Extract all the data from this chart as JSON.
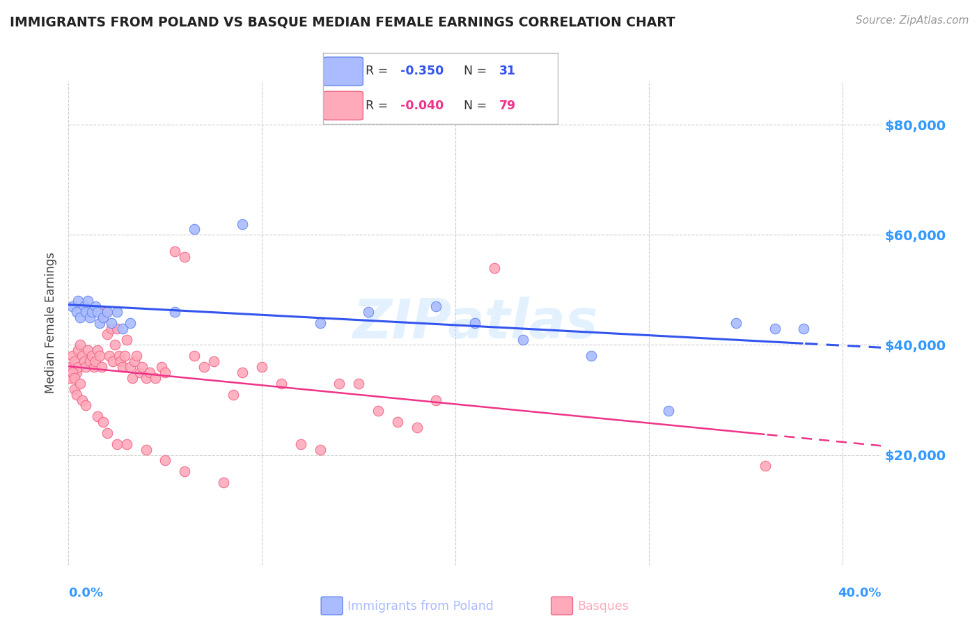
{
  "title": "IMMIGRANTS FROM POLAND VS BASQUE MEDIAN FEMALE EARNINGS CORRELATION CHART",
  "source": "Source: ZipAtlas.com",
  "ylabel": "Median Female Earnings",
  "ytick_labels": [
    "$20,000",
    "$40,000",
    "$60,000",
    "$80,000"
  ],
  "ytick_values": [
    20000,
    40000,
    60000,
    80000
  ],
  "ylim": [
    0,
    88000
  ],
  "xlim": [
    0.0,
    0.42
  ],
  "blue_scatter_x": [
    0.002,
    0.004,
    0.005,
    0.006,
    0.008,
    0.009,
    0.01,
    0.011,
    0.012,
    0.014,
    0.015,
    0.016,
    0.018,
    0.02,
    0.022,
    0.025,
    0.028,
    0.032,
    0.055,
    0.065,
    0.09,
    0.13,
    0.155,
    0.19,
    0.21,
    0.235,
    0.27,
    0.31,
    0.345,
    0.365,
    0.38
  ],
  "blue_scatter_y": [
    47000,
    46000,
    48000,
    45000,
    47000,
    46000,
    48000,
    45000,
    46000,
    47000,
    46000,
    44000,
    45000,
    46000,
    44000,
    46000,
    43000,
    44000,
    46000,
    61000,
    62000,
    44000,
    46000,
    47000,
    44000,
    41000,
    38000,
    28000,
    44000,
    43000,
    43000
  ],
  "pink_scatter_x": [
    0.001,
    0.002,
    0.003,
    0.004,
    0.005,
    0.005,
    0.006,
    0.007,
    0.008,
    0.009,
    0.01,
    0.011,
    0.012,
    0.013,
    0.014,
    0.015,
    0.016,
    0.017,
    0.018,
    0.019,
    0.02,
    0.021,
    0.022,
    0.023,
    0.024,
    0.025,
    0.026,
    0.027,
    0.028,
    0.029,
    0.03,
    0.032,
    0.033,
    0.034,
    0.035,
    0.037,
    0.038,
    0.04,
    0.042,
    0.045,
    0.048,
    0.05,
    0.055,
    0.06,
    0.065,
    0.07,
    0.075,
    0.085,
    0.09,
    0.1,
    0.11,
    0.12,
    0.13,
    0.14,
    0.15,
    0.16,
    0.17,
    0.18,
    0.19,
    0.22,
    0.001,
    0.002,
    0.003,
    0.003,
    0.004,
    0.006,
    0.007,
    0.009,
    0.015,
    0.018,
    0.02,
    0.025,
    0.03,
    0.04,
    0.05,
    0.06,
    0.08,
    0.36
  ],
  "pink_scatter_y": [
    36000,
    38000,
    37000,
    35000,
    39000,
    36000,
    40000,
    38000,
    37000,
    36000,
    39000,
    37000,
    38000,
    36000,
    37000,
    39000,
    38000,
    36000,
    45000,
    46000,
    42000,
    38000,
    43000,
    37000,
    40000,
    43000,
    38000,
    37000,
    36000,
    38000,
    41000,
    36000,
    34000,
    37000,
    38000,
    35000,
    36000,
    34000,
    35000,
    34000,
    36000,
    35000,
    57000,
    56000,
    38000,
    36000,
    37000,
    31000,
    35000,
    36000,
    33000,
    22000,
    21000,
    33000,
    33000,
    28000,
    26000,
    25000,
    30000,
    54000,
    34000,
    35000,
    32000,
    34000,
    31000,
    33000,
    30000,
    29000,
    27000,
    26000,
    24000,
    22000,
    22000,
    21000,
    19000,
    17000,
    15000,
    18000
  ],
  "blue_line_color": "#3355ee",
  "pink_line_color": "#ee3388",
  "blue_scatter_facecolor": "#aabbff",
  "blue_scatter_edgecolor": "#6688ee",
  "pink_scatter_facecolor": "#ffaabb",
  "pink_scatter_edgecolor": "#ee6688",
  "watermark": "ZIPatlas",
  "grid_color": "#cccccc",
  "title_color": "#222222",
  "axis_label_color": "#3399ff",
  "source_color": "#999999",
  "legend_R_color_blue": "#3355ee",
  "legend_R_color_pink": "#ee3388",
  "legend_N_color_blue": "#3355ee",
  "legend_N_color_pink": "#ee3388"
}
